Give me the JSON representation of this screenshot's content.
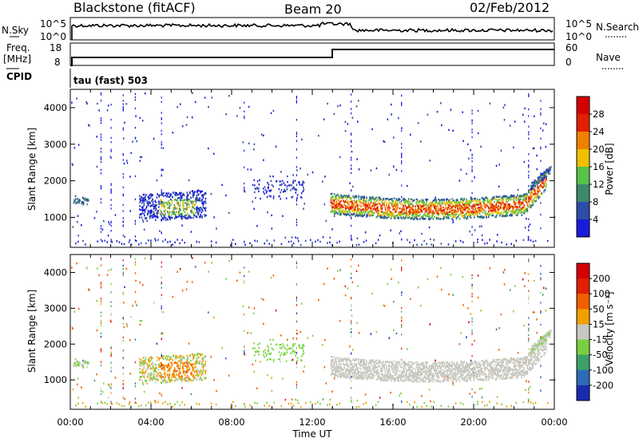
{
  "header": {
    "station": "Blackstone (fitACF)",
    "beam": "Beam 20",
    "date": "02/Feb/2012"
  },
  "top_panels": {
    "nsky_label": "N.Sky",
    "nsky_scale_top": "10^5",
    "nsky_scale_bottom": "10^0",
    "nsearch_label": "N.Search",
    "freq_label_line1": "Freq.",
    "freq_label_line2": "[MHz]",
    "freq_scale_top": "18",
    "freq_scale_bottom": "8",
    "nave_label": "Nave",
    "nave_scale_top": "60",
    "nave_scale_bottom": "0",
    "cpid_label": "CPID",
    "cpid_text": "tau (fast) 503"
  },
  "chart_data": [
    {
      "type": "heatmap",
      "name": "power",
      "ylabel": "Slant Range [km]",
      "xlabel": "",
      "x_range_hours": [
        0,
        24
      ],
      "ylim": [
        180,
        4500
      ],
      "yticks": [
        "1000",
        "2000",
        "3000",
        "4000"
      ],
      "colorbar": {
        "label": "Power [dB]",
        "ticks": [
          "4",
          "8",
          "12",
          "16",
          "20",
          "24",
          "28"
        ],
        "range": [
          0,
          30
        ],
        "colors": [
          "#1a1adc",
          "#2e4da8",
          "#3c8a6a",
          "#56c24a",
          "#f0c000",
          "#f08000",
          "#e02000",
          "#d40000"
        ]
      }
    },
    {
      "type": "heatmap",
      "name": "velocity",
      "ylabel": "Slant Range [km]",
      "xlabel": "Time UT",
      "x_range_hours": [
        0,
        24
      ],
      "ylim": [
        180,
        4500
      ],
      "yticks": [
        "1000",
        "2000",
        "3000",
        "4000"
      ],
      "xticks": [
        "00:00",
        "04:00",
        "08:00",
        "12:00",
        "16:00",
        "20:00",
        "00:00"
      ],
      "colorbar": {
        "label": "Velocity [m s⁻¹]",
        "ticks": [
          "200",
          "100",
          "50",
          "15",
          "-15",
          "-50",
          "-100",
          "-200"
        ],
        "colors": [
          "#1a2ab0",
          "#2e6ab8",
          "#3ca06a",
          "#78d040",
          "#c8c8c0",
          "#f0a000",
          "#f06000",
          "#e02000",
          "#d40000"
        ]
      }
    }
  ]
}
